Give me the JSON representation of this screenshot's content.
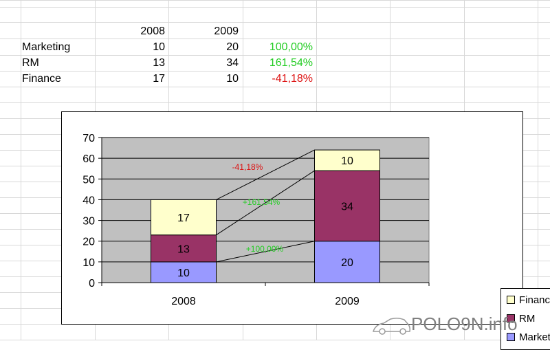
{
  "spreadsheet": {
    "header_years": [
      "2008",
      "2009"
    ],
    "rows": [
      {
        "label": "Marketing",
        "v2008": "10",
        "v2009": "20",
        "change": "100,00%",
        "change_sign": "pos"
      },
      {
        "label": "RM",
        "v2008": "13",
        "v2009": "34",
        "change": "161,54%",
        "change_sign": "pos"
      },
      {
        "label": "Finance",
        "v2008": "17",
        "v2009": "10",
        "change": "-41,18%",
        "change_sign": "neg"
      }
    ],
    "positive_color": "#22cc22",
    "negative_color": "#dd1111"
  },
  "chart_data": {
    "type": "bar",
    "stacked": true,
    "categories": [
      "2008",
      "2009"
    ],
    "series": [
      {
        "name": "Marketing",
        "values": [
          10,
          20
        ],
        "color": "#9999ff"
      },
      {
        "name": "RM",
        "values": [
          13,
          34
        ],
        "color": "#993366"
      },
      {
        "name": "Finance",
        "values": [
          17,
          10
        ],
        "color": "#ffffcc"
      }
    ],
    "ylim": [
      0,
      70
    ],
    "yticks": [
      0,
      10,
      20,
      30,
      40,
      50,
      60,
      70
    ],
    "grid": true,
    "plot_background": "#c0c0c0",
    "legend_position": "right",
    "legend_order": [
      "Finance",
      "RM",
      "Marketing"
    ],
    "annotations": [
      {
        "text": "-41,18%",
        "color": "#dd1111",
        "series": "Finance"
      },
      {
        "text": "+161,54%",
        "color": "#22cc22",
        "series": "RM"
      },
      {
        "text": "+100,00%",
        "color": "#22cc22",
        "series": "Marketing"
      }
    ]
  },
  "watermark": {
    "text": "POLO9N.info",
    "icon": "car-icon"
  }
}
